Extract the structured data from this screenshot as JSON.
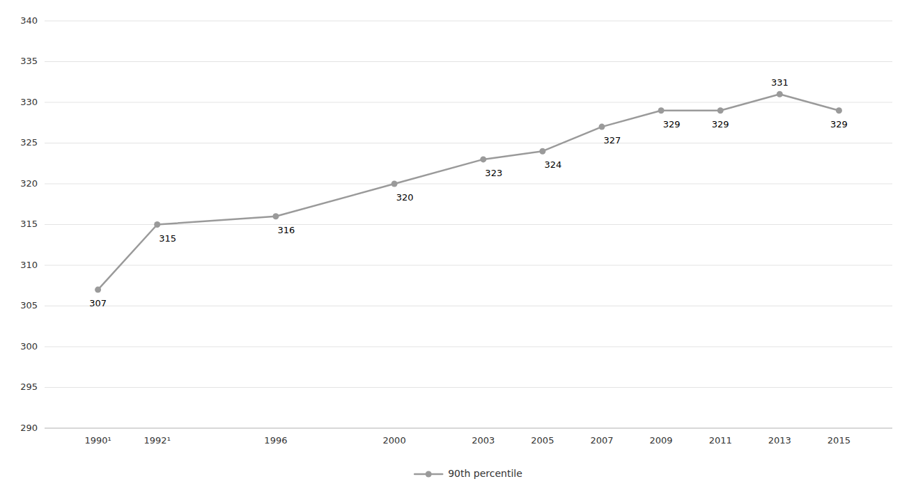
{
  "chart_data": {
    "type": "line",
    "x": [
      1990,
      1992,
      1996,
      2000,
      2003,
      2005,
      2007,
      2009,
      2011,
      2013,
      2015
    ],
    "series": [
      {
        "name": "90th percentile",
        "color": "#9a9a9a",
        "marker": "circle",
        "values": [
          307,
          315,
          316,
          320,
          323,
          324,
          327,
          329,
          329,
          331,
          329
        ]
      }
    ],
    "xlim": [
      1988.2,
      2016.8
    ],
    "xticks": [
      {
        "value": 1990,
        "label": "1990¹"
      },
      {
        "value": 1992,
        "label": "1992¹"
      },
      {
        "value": 1996,
        "label": "1996"
      },
      {
        "value": 2000,
        "label": "2000"
      },
      {
        "value": 2003,
        "label": "2003"
      },
      {
        "value": 2005,
        "label": "2005"
      },
      {
        "value": 2007,
        "label": "2007"
      },
      {
        "value": 2009,
        "label": "2009"
      },
      {
        "value": 2011,
        "label": "2011"
      },
      {
        "value": 2013,
        "label": "2013"
      },
      {
        "value": 2015,
        "label": "2015"
      }
    ],
    "ylim": [
      290,
      340
    ],
    "yticks": [
      290,
      295,
      300,
      305,
      310,
      315,
      320,
      325,
      330,
      335,
      340
    ],
    "grid": true,
    "legend": "bottom",
    "data_labels": true
  }
}
